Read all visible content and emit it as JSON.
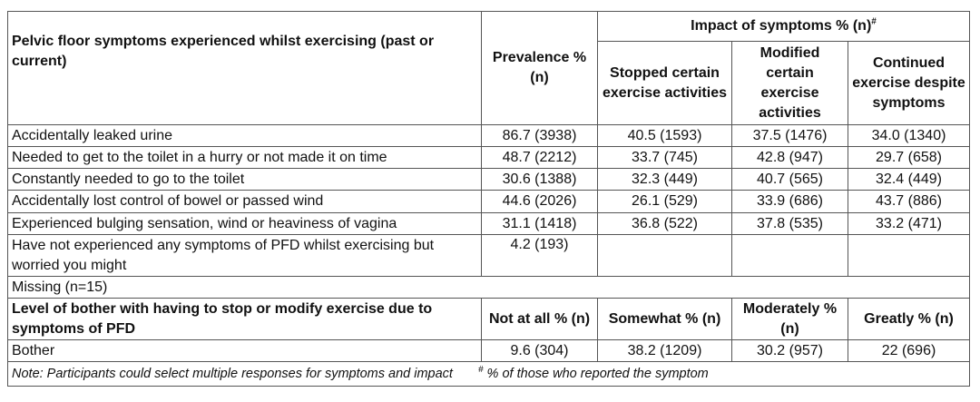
{
  "header": {
    "symptoms_col": "Pelvic floor symptoms experienced whilst exercising (past or current)",
    "prevalence_col": "Prevalence % (n)",
    "impact_group": "Impact of symptoms % (n)",
    "impact_group_sup": "#",
    "impact_cols": [
      "Stopped certain exercise activities",
      "Modified certain exercise activities",
      "Continued exercise despite symptoms"
    ]
  },
  "rows": [
    {
      "label": "Accidentally leaked urine",
      "prevalence": "86.7 (3938)",
      "stopped": "40.5 (1593)",
      "modified": "37.5 (1476)",
      "continued": "34.0 (1340)"
    },
    {
      "label": "Needed to get to the toilet in a hurry or not made it on time",
      "prevalence": "48.7 (2212)",
      "stopped": "33.7 (745)",
      "modified": "42.8 (947)",
      "continued": "29.7 (658)"
    },
    {
      "label": "Constantly needed to go to the toilet",
      "prevalence": "30.6 (1388)",
      "stopped": "32.3 (449)",
      "modified": "40.7 (565)",
      "continued": "32.4 (449)"
    },
    {
      "label": "Accidentally lost control of bowel or passed wind",
      "prevalence": "44.6 (2026)",
      "stopped": "26.1 (529)",
      "modified": "33.9 (686)",
      "continued": "43.7 (886)"
    },
    {
      "label": "Experienced bulging sensation, wind or heaviness of vagina",
      "prevalence": "31.1 (1418)",
      "stopped": "36.8 (522)",
      "modified": "37.8 (535)",
      "continued": "33.2 (471)"
    }
  ],
  "worried_row": {
    "label": "Have not experienced any symptoms of PFD whilst exercising but worried you might",
    "prevalence": "4.2 (193)"
  },
  "missing_row": "Missing (n=15)",
  "bother_header": {
    "label": "Level of bother with having to stop or modify exercise due to symptoms of PFD",
    "cols": [
      "Not at all % (n)",
      "Somewhat % (n)",
      "Moderately % (n)",
      "Greatly % (n)"
    ]
  },
  "bother_row": {
    "label": "Bother",
    "values": [
      "9.6 (304)",
      "38.2 (1209)",
      "30.2 (957)",
      "22 (696)"
    ]
  },
  "note": {
    "text": "Note: Participants could select multiple responses for symptoms and impact",
    "footnote_mark": "#",
    "footnote_text": " % of those who reported the symptom"
  }
}
